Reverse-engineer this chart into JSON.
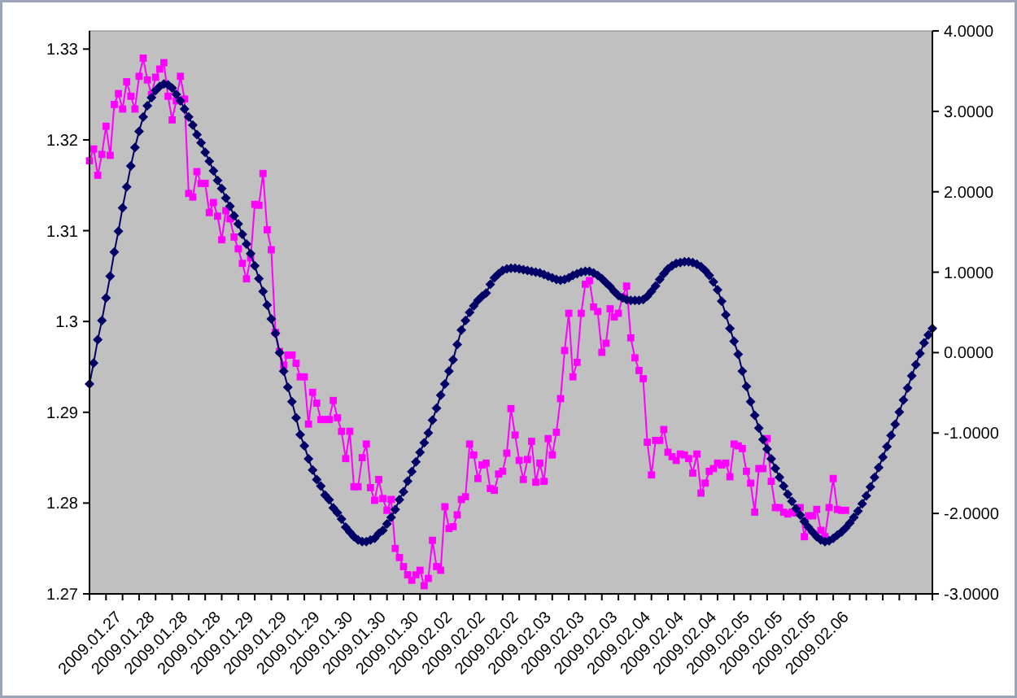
{
  "chart_data": {
    "type": "line",
    "categories": [
      "2009.01.27",
      null,
      null,
      null,
      null,
      null,
      null,
      null,
      "2009.01.28",
      null,
      null,
      null,
      null,
      null,
      null,
      null,
      "2009.01.28",
      null,
      null,
      null,
      null,
      null,
      null,
      null,
      "2009.01.28",
      null,
      null,
      null,
      null,
      null,
      null,
      null,
      "2009.01.29",
      null,
      null,
      null,
      null,
      null,
      null,
      null,
      "2009.01.29",
      null,
      null,
      null,
      null,
      null,
      null,
      null,
      "2009.01.29",
      null,
      null,
      null,
      null,
      null,
      null,
      null,
      "2009.01.30",
      null,
      null,
      null,
      null,
      null,
      null,
      null,
      "2009.01.30",
      null,
      null,
      null,
      null,
      null,
      null,
      null,
      "2009.01.30",
      null,
      null,
      null,
      null,
      null,
      null,
      null,
      "2009.02.02",
      null,
      null,
      null,
      null,
      null,
      null,
      null,
      "2009.02.02",
      null,
      null,
      null,
      null,
      null,
      null,
      null,
      "2009.02.02",
      null,
      null,
      null,
      null,
      null,
      null,
      null,
      "2009.02.03",
      null,
      null,
      null,
      null,
      null,
      null,
      null,
      "2009.02.03",
      null,
      null,
      null,
      null,
      null,
      null,
      null,
      "2009.02.03",
      null,
      null,
      null,
      null,
      null,
      null,
      null,
      "2009.02.04",
      null,
      null,
      null,
      null,
      null,
      null,
      null,
      "2009.02.04",
      null,
      null,
      null,
      null,
      null,
      null,
      null,
      "2009.02.04",
      null,
      null,
      null,
      null,
      null,
      null,
      null,
      "2009.02.05",
      null,
      null,
      null,
      null,
      null,
      null,
      null,
      "2009.02.05",
      null,
      null,
      null,
      null,
      null,
      null,
      null,
      "2009.02.05",
      null,
      null,
      null,
      null,
      null,
      null,
      null,
      "2009.02.06",
      null,
      null,
      null,
      null,
      null,
      null,
      null,
      null,
      null,
      null,
      null,
      null,
      null,
      null,
      null,
      null,
      null,
      null,
      null,
      null,
      null,
      null,
      null,
      null,
      null,
      null,
      null,
      null
    ],
    "series": [
      {
        "color": "#ff00ff",
        "marker": "square",
        "values": [
          1.3177,
          1.319,
          1.3161,
          1.3184,
          1.3215,
          1.3183,
          1.3239,
          1.3251,
          1.3234,
          1.3264,
          1.3248,
          1.3234,
          1.327,
          1.329,
          1.3266,
          1.325,
          1.3269,
          1.3278,
          1.3285,
          1.3248,
          1.3222,
          1.3243,
          1.327,
          1.3245,
          1.3141,
          1.3137,
          1.3165,
          1.3152,
          1.3152,
          1.312,
          1.3131,
          1.3116,
          1.309,
          1.3122,
          1.3113,
          1.3093,
          1.308,
          1.3064,
          1.3047,
          1.307,
          1.3129,
          1.3128,
          1.3163,
          1.3101,
          1.3079,
          1.2988,
          1.2967,
          1.2952,
          1.2963,
          1.2963,
          1.2954,
          1.2939,
          1.2939,
          1.2887,
          1.2922,
          1.291,
          1.2892,
          1.2892,
          1.2892,
          1.2913,
          1.2894,
          1.2879,
          1.2849,
          1.2879,
          1.2818,
          1.2818,
          1.285,
          1.2865,
          1.2817,
          1.2803,
          1.2826,
          1.2805,
          1.2792,
          1.2804,
          1.275,
          1.274,
          1.273,
          1.2721,
          1.2715,
          1.2721,
          1.2726,
          1.2709,
          1.2717,
          1.2759,
          1.273,
          1.2726,
          1.2796,
          1.2772,
          1.2774,
          1.2787,
          1.2804,
          1.2807,
          1.2865,
          1.2853,
          1.2827,
          1.2842,
          1.2844,
          1.2816,
          1.2814,
          1.2832,
          1.2835,
          1.2855,
          1.2904,
          1.2875,
          1.2847,
          1.2826,
          1.2848,
          1.2868,
          1.2823,
          1.2844,
          1.2824,
          1.2871,
          1.2853,
          1.2878,
          1.2915,
          1.2968,
          1.3009,
          1.2939,
          1.2955,
          1.3009,
          1.3041,
          1.3045,
          1.3016,
          1.3011,
          1.2966,
          1.2976,
          1.3014,
          1.3005,
          1.3009,
          1.3027,
          1.3039,
          1.2982,
          1.296,
          1.2946,
          1.2937,
          1.2867,
          1.2831,
          1.2869,
          1.2869,
          1.2881,
          1.2856,
          1.2851,
          1.2847,
          1.2854,
          1.2853,
          1.2849,
          1.2833,
          1.2854,
          1.2811,
          1.2822,
          1.2835,
          1.2838,
          1.2844,
          1.2842,
          1.2844,
          1.2829,
          1.2865,
          1.2863,
          1.286,
          1.2835,
          1.2822,
          1.279,
          1.2838,
          1.2838,
          1.2871,
          1.2824,
          1.2795,
          1.2795,
          1.279,
          1.2788,
          1.279,
          1.2789,
          1.2795,
          1.2763,
          1.2786,
          1.2786,
          1.2793,
          1.277,
          1.2763,
          1.2795,
          1.2827,
          1.2793,
          1.2792,
          1.2792,
          null,
          null,
          null,
          null,
          null,
          null,
          null,
          null,
          null,
          null,
          null,
          null,
          null,
          null,
          null,
          null,
          null,
          null,
          null,
          null,
          null
        ]
      },
      {
        "color": "#000066",
        "marker": "diamond",
        "axis": "y2",
        "values": [
          -0.39,
          -0.13,
          0.16,
          0.4,
          0.68,
          0.95,
          1.25,
          1.51,
          1.8,
          2.06,
          2.32,
          2.55,
          2.75,
          2.93,
          3.07,
          3.17,
          3.26,
          3.31,
          3.34,
          3.33,
          3.29,
          3.21,
          3.13,
          3.03,
          2.93,
          2.83,
          2.71,
          2.61,
          2.49,
          2.38,
          2.26,
          2.14,
          2.04,
          1.92,
          1.82,
          1.7,
          1.6,
          1.47,
          1.35,
          1.23,
          1.08,
          0.92,
          0.76,
          0.59,
          0.42,
          0.24,
          0.0,
          -0.23,
          -0.43,
          -0.61,
          -0.81,
          -1.02,
          -1.16,
          -1.32,
          -1.46,
          -1.58,
          -1.66,
          -1.77,
          -1.83,
          -1.93,
          -1.99,
          -2.07,
          -2.17,
          -2.23,
          -2.29,
          -2.33,
          -2.35,
          -2.35,
          -2.33,
          -2.31,
          -2.25,
          -2.21,
          -2.13,
          -2.05,
          -1.95,
          -1.83,
          -1.73,
          -1.6,
          -1.48,
          -1.36,
          -1.24,
          -1.12,
          -1.0,
          -0.84,
          -0.69,
          -0.53,
          -0.39,
          -0.23,
          -0.09,
          0.1,
          0.28,
          0.4,
          0.5,
          0.58,
          0.65,
          0.7,
          0.74,
          0.85,
          0.93,
          0.98,
          1.02,
          1.04,
          1.05,
          1.05,
          1.04,
          1.03,
          1.02,
          1.01,
          1.0,
          0.99,
          0.97,
          0.95,
          0.93,
          0.91,
          0.9,
          0.91,
          0.93,
          0.96,
          0.98,
          1.0,
          1.01,
          1.01,
          0.99,
          0.96,
          0.92,
          0.87,
          0.82,
          0.76,
          0.71,
          0.68,
          0.66,
          0.65,
          0.65,
          0.65,
          0.66,
          0.7,
          0.76,
          0.83,
          0.91,
          0.98,
          1.04,
          1.08,
          1.11,
          1.12,
          1.13,
          1.13,
          1.12,
          1.1,
          1.07,
          1.02,
          0.96,
          0.88,
          0.78,
          0.64,
          0.47,
          0.3,
          0.14,
          -0.02,
          -0.23,
          -0.42,
          -0.61,
          -0.78,
          -0.94,
          -1.08,
          -1.2,
          -1.32,
          -1.44,
          -1.55,
          -1.66,
          -1.76,
          -1.85,
          -1.94,
          -2.02,
          -2.1,
          -2.17,
          -2.23,
          -2.29,
          -2.33,
          -2.35,
          -2.34,
          -2.31,
          -2.27,
          -2.23,
          -2.18,
          -2.12,
          -2.05,
          -1.97,
          -1.88,
          -1.78,
          -1.67,
          -1.55,
          -1.43,
          -1.3,
          -1.17,
          -1.03,
          -0.89,
          -0.74,
          -0.59,
          -0.44,
          -0.29,
          -0.15,
          -0.01,
          0.12,
          0.22,
          0.3
        ]
      }
    ],
    "ylim": [
      1.27,
      1.332
    ],
    "yticks": [
      1.27,
      1.28,
      1.29,
      1.3,
      1.31,
      1.32,
      1.33
    ],
    "y2lim": [
      -3,
      4
    ],
    "y2ticks": [
      {
        "value": -3,
        "label": "-3.0000"
      },
      {
        "value": -2,
        "label": "-2.0000"
      },
      {
        "value": -1,
        "label": "-1.0000"
      },
      {
        "value": 0,
        "label": "0.0000"
      },
      {
        "value": 1,
        "label": "1.0000"
      },
      {
        "value": 2,
        "label": "2.0000"
      },
      {
        "value": 3,
        "label": "3.0000"
      },
      {
        "value": 4,
        "label": "4.0000"
      }
    ],
    "grid": false
  }
}
